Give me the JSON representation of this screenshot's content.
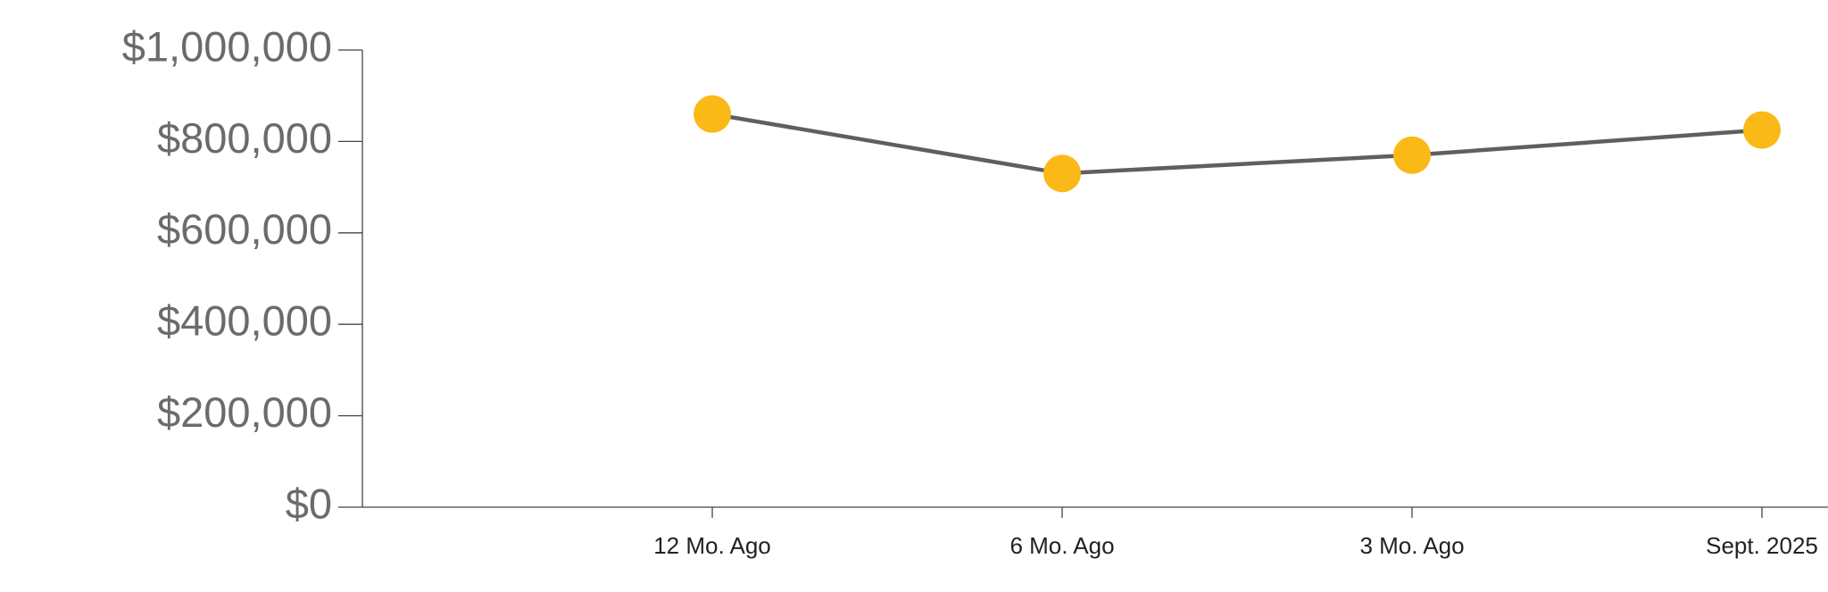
{
  "chart_data": {
    "type": "line",
    "categories": [
      null,
      "12 Mo. Ago",
      "6 Mo. Ago",
      "3 Mo. Ago",
      "Sept. 2025"
    ],
    "series": [
      {
        "values": [
          null,
          860000,
          730000,
          770000,
          825000
        ],
        "color": "#5f5f5f",
        "marker_color": "#fbb917"
      }
    ],
    "ylim": [
      0,
      1000000
    ],
    "yticks": [
      {
        "value": 0,
        "label": "$0"
      },
      {
        "value": 200000,
        "label": "$200,000"
      },
      {
        "value": 400000,
        "label": "$400,000"
      },
      {
        "value": 600000,
        "label": "$600,000"
      },
      {
        "value": 800000,
        "label": "$800,000"
      },
      {
        "value": 1000000,
        "label": "$1,000,000"
      }
    ],
    "grid": false
  }
}
